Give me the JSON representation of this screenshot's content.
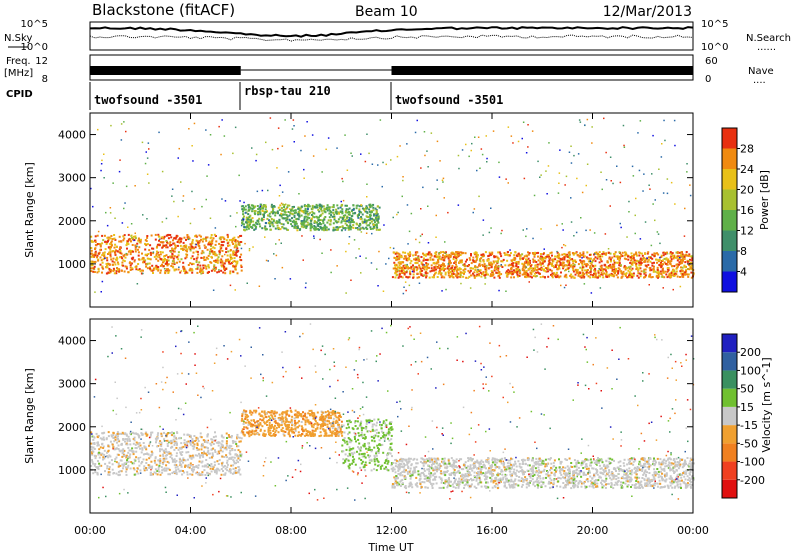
{
  "header": {
    "station": "Blackstone (fitACF)",
    "beam": "Beam 10",
    "date": "12/Mar/2013"
  },
  "strip_labels": {
    "left_top": "N.Sky",
    "left_freq_1": "Freq.",
    "left_freq_2": "[MHz]",
    "cpid": "CPID",
    "right_top": "N.Search",
    "right_mid": "Nave",
    "dots": "......",
    "dots_short": "...."
  },
  "strip_ticks": {
    "left_top_hi": "10^5",
    "left_top_lo": "10^0",
    "right_top_hi": "10^5",
    "right_top_lo": "10^0",
    "freq_hi": "12",
    "freq_lo": "8",
    "nave_hi": "60",
    "nave_lo": "0"
  },
  "cpid_segments": [
    {
      "label": "twofsound -3501"
    },
    {
      "label": "rbsp-tau 210"
    },
    {
      "label": "twofsound -3501"
    }
  ],
  "x_axis": {
    "label": "Time UT",
    "ticks": [
      "00:00",
      "04:00",
      "08:00",
      "12:00",
      "16:00",
      "20:00",
      "00:00"
    ]
  },
  "chart_data": [
    {
      "type": "heatmap",
      "name": "power-panel",
      "xlabel": "Time UT",
      "ylabel": "Slant Range [km]",
      "ylim": [
        0,
        4500
      ],
      "xlim_hours": [
        0,
        24
      ],
      "y_ticks": [
        "1000",
        "2000",
        "3000",
        "4000"
      ],
      "colorbar": {
        "label": "Power [dB]",
        "ticks": [
          "4",
          "8",
          "12",
          "16",
          "20",
          "24",
          "28"
        ],
        "range": [
          0,
          32
        ],
        "colors": [
          "#1010e0",
          "#2a6aa8",
          "#3f8f6a",
          "#5fb048",
          "#a8c030",
          "#e8c018",
          "#f08a10",
          "#e83010"
        ]
      },
      "features": [
        {
          "t0": 0.0,
          "t1": 6.0,
          "range_lo": 800,
          "range_hi": 1700,
          "level": 26
        },
        {
          "t0": 6.0,
          "t1": 11.5,
          "range_lo": 1800,
          "range_hi": 2400,
          "level": 14
        },
        {
          "t0": 12.0,
          "t1": 24.0,
          "range_lo": 700,
          "range_hi": 1300,
          "level": 26
        }
      ]
    },
    {
      "type": "heatmap",
      "name": "velocity-panel",
      "xlabel": "Time UT",
      "ylabel": "Slant Range [km]",
      "ylim": [
        0,
        4500
      ],
      "xlim_hours": [
        0,
        24
      ],
      "y_ticks": [
        "1000",
        "2000",
        "3000",
        "4000"
      ],
      "colorbar": {
        "label": "Velocity [m s^-1]",
        "ticks": [
          "-200",
          "-100",
          "-50",
          "-15",
          "15",
          "50",
          "100",
          "200"
        ],
        "range": [
          -250,
          250
        ],
        "colors": [
          "#e01010",
          "#f04020",
          "#f08020",
          "#f0a030",
          "#c8c8c8",
          "#70c030",
          "#3a9060",
          "#3060a0",
          "#2020c0"
        ]
      },
      "features": [
        {
          "t0": 0.0,
          "t1": 6.0,
          "range_lo": 900,
          "range_hi": 1900,
          "level": -10
        },
        {
          "t0": 6.0,
          "t1": 10.0,
          "range_lo": 1800,
          "range_hi": 2400,
          "level": -60
        },
        {
          "t0": 10.0,
          "t1": 12.0,
          "range_lo": 1000,
          "range_hi": 2200,
          "level": 40
        },
        {
          "t0": 12.0,
          "t1": 24.0,
          "range_lo": 600,
          "range_hi": 1300,
          "level": 0
        }
      ]
    }
  ]
}
